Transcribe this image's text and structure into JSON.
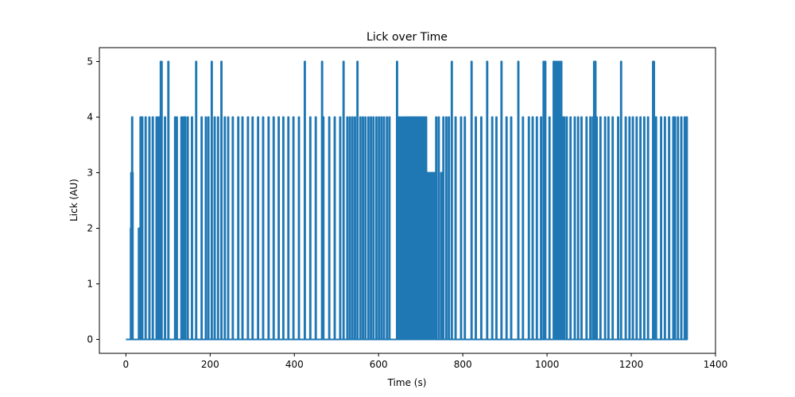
{
  "chart_data": {
    "type": "line",
    "title": "Lick over Time",
    "xlabel": "Time (s)",
    "ylabel": "Lick (AU)",
    "xlim": [
      -63,
      1400
    ],
    "ylim": [
      -0.25,
      5.25
    ],
    "xticks": [
      0,
      200,
      400,
      600,
      800,
      1000,
      1200,
      1400
    ],
    "yticks": [
      0,
      1,
      2,
      3,
      4,
      5
    ],
    "xticklabels": [
      "0",
      "200",
      "400",
      "600",
      "800",
      "1000",
      "1200",
      "1400"
    ],
    "yticklabels": [
      "0",
      "1",
      "2",
      "3",
      "4",
      "5"
    ],
    "grid": false,
    "legend": "none",
    "color": "#1f77b4",
    "x_range": [
      0,
      1332
    ],
    "spikes": [
      [
        11,
        2
      ],
      [
        12,
        3
      ],
      [
        14,
        4
      ],
      [
        15,
        3
      ],
      [
        30,
        2
      ],
      [
        34,
        4
      ],
      [
        38,
        4
      ],
      [
        46,
        4
      ],
      [
        55,
        4
      ],
      [
        63,
        4
      ],
      [
        72,
        4
      ],
      [
        77,
        4
      ],
      [
        82,
        5
      ],
      [
        84,
        5
      ],
      [
        92,
        4
      ],
      [
        100,
        5
      ],
      [
        116,
        4
      ],
      [
        120,
        4
      ],
      [
        131,
        4
      ],
      [
        136,
        4
      ],
      [
        140,
        4
      ],
      [
        146,
        4
      ],
      [
        156,
        4
      ],
      [
        166,
        5
      ],
      [
        179,
        4
      ],
      [
        189,
        4
      ],
      [
        195,
        4
      ],
      [
        203,
        5
      ],
      [
        210,
        4
      ],
      [
        218,
        4
      ],
      [
        226,
        5
      ],
      [
        234,
        4
      ],
      [
        242,
        4
      ],
      [
        253,
        4
      ],
      [
        266,
        4
      ],
      [
        276,
        4
      ],
      [
        289,
        4
      ],
      [
        300,
        4
      ],
      [
        313,
        4
      ],
      [
        325,
        4
      ],
      [
        338,
        4
      ],
      [
        350,
        4
      ],
      [
        362,
        4
      ],
      [
        373,
        4
      ],
      [
        385,
        4
      ],
      [
        397,
        4
      ],
      [
        410,
        4
      ],
      [
        424,
        5
      ],
      [
        437,
        4
      ],
      [
        450,
        4
      ],
      [
        465,
        5
      ],
      [
        468,
        4
      ],
      [
        482,
        4
      ],
      [
        495,
        4
      ],
      [
        508,
        4
      ],
      [
        516,
        5
      ],
      [
        525,
        4
      ],
      [
        531,
        4
      ],
      [
        537,
        4
      ],
      [
        543,
        4
      ],
      [
        549,
        5
      ],
      [
        556,
        4
      ],
      [
        562,
        4
      ],
      [
        568,
        4
      ],
      [
        575,
        4
      ],
      [
        581,
        4
      ],
      [
        587,
        4
      ],
      [
        594,
        4
      ],
      [
        600,
        4
      ],
      [
        606,
        4
      ],
      [
        612,
        4
      ],
      [
        619,
        4
      ],
      [
        625,
        4
      ],
      [
        643,
        5
      ],
      [
        646,
        4
      ],
      [
        650,
        4
      ],
      [
        655,
        4
      ],
      [
        660,
        4
      ],
      [
        664,
        4
      ],
      [
        668,
        4
      ],
      [
        672,
        4
      ],
      [
        676,
        4
      ],
      [
        680,
        4
      ],
      [
        684,
        4
      ],
      [
        688,
        4
      ],
      [
        692,
        4
      ],
      [
        696,
        4
      ],
      [
        700,
        4
      ],
      [
        704,
        4
      ],
      [
        708,
        4
      ],
      [
        712,
        4
      ],
      [
        716,
        3
      ],
      [
        720,
        3
      ],
      [
        724,
        3
      ],
      [
        728,
        3
      ],
      [
        732,
        3
      ],
      [
        736,
        4
      ],
      [
        742,
        4
      ],
      [
        748,
        3
      ],
      [
        753,
        4
      ],
      [
        760,
        4
      ],
      [
        766,
        4
      ],
      [
        773,
        5
      ],
      [
        782,
        4
      ],
      [
        795,
        4
      ],
      [
        804,
        4
      ],
      [
        820,
        5
      ],
      [
        830,
        4
      ],
      [
        843,
        4
      ],
      [
        857,
        5
      ],
      [
        869,
        4
      ],
      [
        879,
        4
      ],
      [
        891,
        5
      ],
      [
        903,
        4
      ],
      [
        914,
        4
      ],
      [
        931,
        5
      ],
      [
        942,
        4
      ],
      [
        956,
        4
      ],
      [
        965,
        4
      ],
      [
        975,
        4
      ],
      [
        985,
        4
      ],
      [
        991,
        5
      ],
      [
        995,
        5
      ],
      [
        1005,
        4
      ],
      [
        1015,
        5
      ],
      [
        1018,
        5
      ],
      [
        1020,
        4
      ],
      [
        1022,
        5
      ],
      [
        1024,
        5
      ],
      [
        1026,
        4
      ],
      [
        1028,
        5
      ],
      [
        1030,
        4
      ],
      [
        1033,
        5
      ],
      [
        1036,
        4
      ],
      [
        1040,
        4
      ],
      [
        1046,
        4
      ],
      [
        1055,
        4
      ],
      [
        1065,
        4
      ],
      [
        1073,
        4
      ],
      [
        1081,
        4
      ],
      [
        1093,
        4
      ],
      [
        1102,
        4
      ],
      [
        1108,
        4
      ],
      [
        1111,
        5
      ],
      [
        1114,
        5
      ],
      [
        1117,
        4
      ],
      [
        1126,
        4
      ],
      [
        1137,
        4
      ],
      [
        1145,
        4
      ],
      [
        1155,
        4
      ],
      [
        1168,
        4
      ],
      [
        1175,
        5
      ],
      [
        1186,
        4
      ],
      [
        1195,
        4
      ],
      [
        1203,
        4
      ],
      [
        1212,
        4
      ],
      [
        1221,
        4
      ],
      [
        1230,
        4
      ],
      [
        1239,
        4
      ],
      [
        1251,
        5
      ],
      [
        1253,
        5
      ],
      [
        1258,
        4
      ],
      [
        1270,
        4
      ],
      [
        1279,
        4
      ],
      [
        1289,
        4
      ],
      [
        1299,
        4
      ],
      [
        1303,
        4
      ],
      [
        1310,
        4
      ],
      [
        1318,
        4
      ],
      [
        1326,
        4
      ],
      [
        1331,
        4
      ]
    ]
  }
}
